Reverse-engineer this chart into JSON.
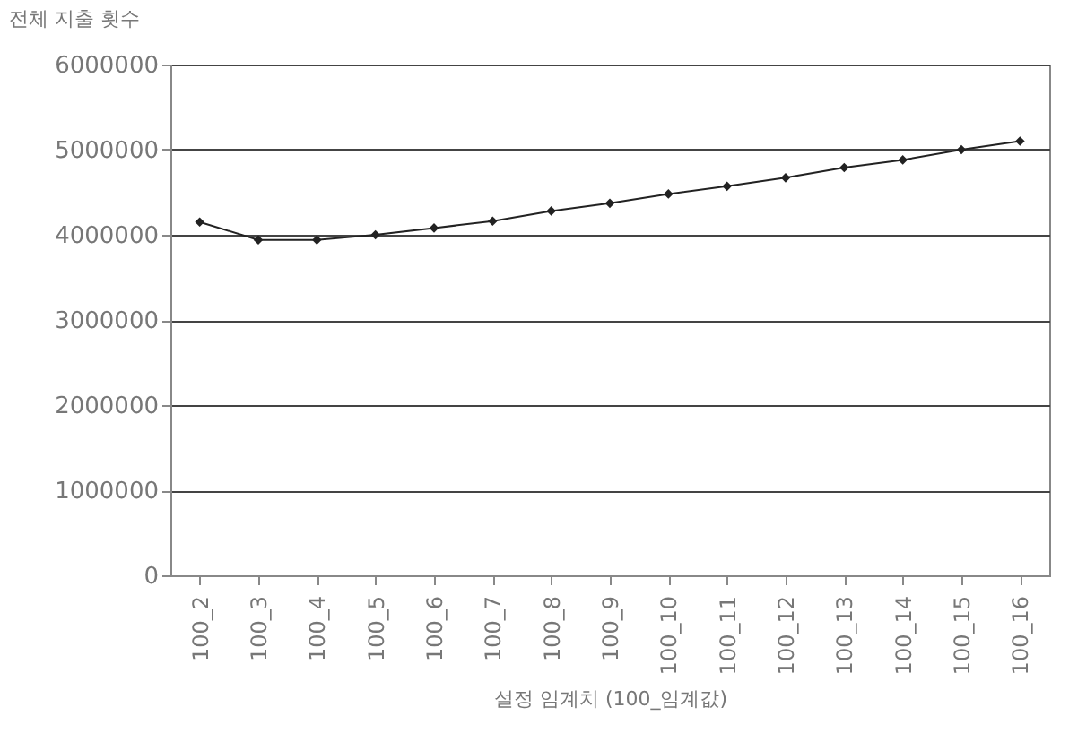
{
  "chart_data": {
    "type": "line",
    "title": "전체 지출 횟수",
    "xlabel": "설정 임계치 (100_임계값)",
    "categories": [
      "100_2",
      "100_3",
      "100_4",
      "100_5",
      "100_6",
      "100_7",
      "100_8",
      "100_9",
      "100_10",
      "100_11",
      "100_12",
      "100_13",
      "100_14",
      "100_15",
      "100_16"
    ],
    "series": [
      {
        "color": "#222222",
        "values": [
          4150000,
          3940000,
          3940000,
          4000000,
          4080000,
          4160000,
          4280000,
          4370000,
          4480000,
          4570000,
          4670000,
          4790000,
          4880000,
          5000000,
          5100000
        ]
      }
    ],
    "ylim": [
      0,
      6000000
    ],
    "yticks": [
      0,
      1000000,
      2000000,
      3000000,
      4000000,
      5000000,
      6000000
    ],
    "grid": "y",
    "marker": "diamond",
    "line_style": "solid"
  }
}
